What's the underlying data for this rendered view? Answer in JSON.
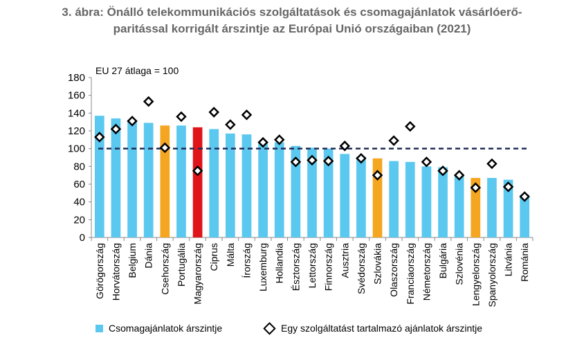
{
  "title_line1": "3. ábra: Önálló telekommunikációs szolgáltatások és csomagajánlatok vásárlóerő-",
  "title_line2": "paritással korrigált árszintje az Európai Unió országaiban (2021)",
  "colors": {
    "default": "#5bc8f0",
    "highlight_orange": "#f4a621",
    "highlight_red": "#e0151b",
    "reference_line": "#1f2a55"
  },
  "chart_data": {
    "type": "bar",
    "annotation": "EU 27 átlaga = 100",
    "ylim": [
      0,
      180
    ],
    "yticks": [
      0,
      20,
      40,
      60,
      80,
      100,
      120,
      140,
      160,
      180
    ],
    "reference_value": 100,
    "categories": [
      "Görögország",
      "Horvátország",
      "Belgium",
      "Dánia",
      "Csehország",
      "Portugália",
      "Magyarország",
      "Ciprus",
      "Málta",
      "Írország",
      "Luxemburg",
      "Hollandia",
      "Észtország",
      "Lettország",
      "Finnország",
      "Ausztria",
      "Svédország",
      "Szlovákia",
      "Olaszország",
      "Franciaország",
      "Németország",
      "Bulgária",
      "Szlovénia",
      "Lengyelország",
      "Spanyolország",
      "Litvánia",
      "Románia"
    ],
    "bar_colors": [
      "default",
      "default",
      "default",
      "default",
      "orange",
      "default",
      "red",
      "default",
      "default",
      "default",
      "default",
      "default",
      "default",
      "default",
      "default",
      "default",
      "default",
      "orange",
      "default",
      "default",
      "default",
      "default",
      "default",
      "orange",
      "default",
      "default",
      "default"
    ],
    "series": [
      {
        "name": "Csomagajánlatok árszintje",
        "type": "bar",
        "values": [
          137,
          134,
          131,
          129,
          126,
          126,
          124,
          122,
          117,
          116,
          108,
          107,
          103,
          101,
          100,
          94,
          91,
          89,
          86,
          85,
          80,
          79,
          71,
          67,
          67,
          65,
          48
        ]
      },
      {
        "name": "Egy szolgáltatást tartalmazó ajánlatok árszintje",
        "type": "marker",
        "values": [
          113,
          122,
          131,
          153,
          101,
          136,
          75,
          141,
          127,
          138,
          107,
          110,
          85,
          87,
          86,
          103,
          89,
          70,
          109,
          125,
          85,
          75,
          70,
          56,
          83,
          57,
          46
        ]
      }
    ]
  }
}
